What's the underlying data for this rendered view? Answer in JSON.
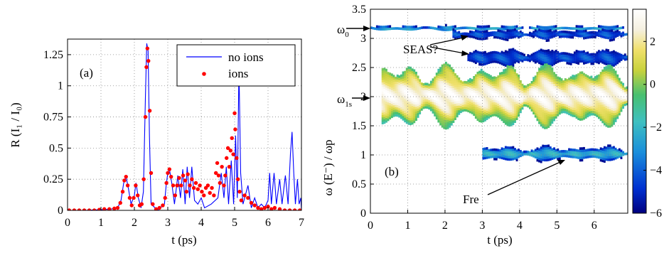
{
  "chart_data": [
    {
      "panel": "(a)",
      "type": "line",
      "xlabel": "t  (ps)",
      "ylabel": "R  (I₁ / I₀)",
      "xlim": [
        0,
        7
      ],
      "ylim": [
        0,
        1.375
      ],
      "xticks": [
        "0",
        "1",
        "2",
        "3",
        "4",
        "5",
        "6",
        "7"
      ],
      "yticks": [
        "0",
        "0.25",
        "0.5",
        "0.75",
        "1",
        "1.25"
      ],
      "grid": "dotted",
      "legend_position": "top-right",
      "series": [
        {
          "name": "no ions",
          "style": "line",
          "color": "#0000ff",
          "points": [
            [
              0,
              0
            ],
            [
              0.5,
              0
            ],
            [
              1.0,
              0.005
            ],
            [
              1.3,
              0.01
            ],
            [
              1.5,
              0.02
            ],
            [
              1.6,
              0.08
            ],
            [
              1.68,
              0.22
            ],
            [
              1.75,
              0.27
            ],
            [
              1.82,
              0.18
            ],
            [
              1.9,
              0.05
            ],
            [
              2.0,
              0.12
            ],
            [
              2.05,
              0.22
            ],
            [
              2.12,
              0.1
            ],
            [
              2.2,
              0.02
            ],
            [
              2.27,
              0.15
            ],
            [
              2.33,
              0.9
            ],
            [
              2.37,
              1.34
            ],
            [
              2.41,
              1.28
            ],
            [
              2.45,
              0.6
            ],
            [
              2.5,
              0.05
            ],
            [
              2.7,
              0.0
            ],
            [
              2.9,
              0.05
            ],
            [
              2.95,
              0.2
            ],
            [
              3.0,
              0.3
            ],
            [
              3.05,
              0.33
            ],
            [
              3.12,
              0.22
            ],
            [
              3.2,
              0.05
            ],
            [
              3.3,
              0.28
            ],
            [
              3.38,
              0.1
            ],
            [
              3.45,
              0.33
            ],
            [
              3.52,
              0.05
            ],
            [
              3.58,
              0.35
            ],
            [
              3.65,
              0.1
            ],
            [
              3.72,
              0.35
            ],
            [
              3.8,
              0.08
            ],
            [
              3.9,
              0.05
            ],
            [
              4.0,
              0.1
            ],
            [
              4.1,
              0.02
            ],
            [
              4.3,
              0.05
            ],
            [
              4.5,
              0.1
            ],
            [
              4.6,
              0.3
            ],
            [
              4.68,
              0.1
            ],
            [
              4.75,
              0.35
            ],
            [
              4.82,
              0.05
            ],
            [
              4.9,
              0.4
            ],
            [
              4.97,
              0.05
            ],
            [
              5.03,
              0.6
            ],
            [
              5.08,
              0.1
            ],
            [
              5.13,
              1.15
            ],
            [
              5.18,
              0.3
            ],
            [
              5.25,
              0.05
            ],
            [
              5.4,
              0.2
            ],
            [
              5.5,
              0.02
            ],
            [
              5.6,
              0.1
            ],
            [
              5.7,
              0.02
            ],
            [
              5.8,
              0.05
            ],
            [
              5.9,
              0.02
            ],
            [
              6.0,
              0.08
            ],
            [
              6.05,
              0.3
            ],
            [
              6.1,
              0.05
            ],
            [
              6.18,
              0.3
            ],
            [
              6.25,
              0.05
            ],
            [
              6.35,
              0.25
            ],
            [
              6.42,
              0.05
            ],
            [
              6.52,
              0.28
            ],
            [
              6.6,
              0.05
            ],
            [
              6.67,
              0.45
            ],
            [
              6.72,
              0.63
            ],
            [
              6.77,
              0.3
            ],
            [
              6.82,
              0.05
            ],
            [
              6.88,
              0.25
            ],
            [
              6.93,
              0.05
            ],
            [
              6.98,
              0.1
            ],
            [
              7.0,
              0.0
            ]
          ]
        },
        {
          "name": "ions",
          "style": "markers",
          "color": "#ff0000",
          "points": [
            [
              0.05,
              0
            ],
            [
              0.2,
              0
            ],
            [
              0.35,
              0
            ],
            [
              0.5,
              0
            ],
            [
              0.65,
              0
            ],
            [
              0.8,
              0
            ],
            [
              0.95,
              0.005
            ],
            [
              1.1,
              0.01
            ],
            [
              1.25,
              0.01
            ],
            [
              1.4,
              0.015
            ],
            [
              1.5,
              0.02
            ],
            [
              1.58,
              0.06
            ],
            [
              1.65,
              0.15
            ],
            [
              1.7,
              0.24
            ],
            [
              1.75,
              0.27
            ],
            [
              1.8,
              0.2
            ],
            [
              1.86,
              0.1
            ],
            [
              1.92,
              0.04
            ],
            [
              1.98,
              0.1
            ],
            [
              2.04,
              0.2
            ],
            [
              2.1,
              0.12
            ],
            [
              2.16,
              0.04
            ],
            [
              2.22,
              0.05
            ],
            [
              2.28,
              0.25
            ],
            [
              2.33,
              0.75
            ],
            [
              2.36,
              1.15
            ],
            [
              2.39,
              1.3
            ],
            [
              2.42,
              1.2
            ],
            [
              2.46,
              0.8
            ],
            [
              2.5,
              0.3
            ],
            [
              2.55,
              0.05
            ],
            [
              2.65,
              0.01
            ],
            [
              2.75,
              0.02
            ],
            [
              2.85,
              0.04
            ],
            [
              2.92,
              0.1
            ],
            [
              2.96,
              0.22
            ],
            [
              3.0,
              0.3
            ],
            [
              3.05,
              0.33
            ],
            [
              3.1,
              0.27
            ],
            [
              3.16,
              0.2
            ],
            [
              3.22,
              0.12
            ],
            [
              3.28,
              0.2
            ],
            [
              3.34,
              0.26
            ],
            [
              3.4,
              0.2
            ],
            [
              3.46,
              0.28
            ],
            [
              3.52,
              0.24
            ],
            [
              3.56,
              0.15
            ],
            [
              3.6,
              0.29
            ],
            [
              3.66,
              0.2
            ],
            [
              3.72,
              0.25
            ],
            [
              3.78,
              0.18
            ],
            [
              3.84,
              0.22
            ],
            [
              3.9,
              0.17
            ],
            [
              3.96,
              0.2
            ],
            [
              4.02,
              0.15
            ],
            [
              4.08,
              0.12
            ],
            [
              4.14,
              0.18
            ],
            [
              4.2,
              0.2
            ],
            [
              4.26,
              0.14
            ],
            [
              4.32,
              0.18
            ],
            [
              4.38,
              0.12
            ],
            [
              4.44,
              0.3
            ],
            [
              4.48,
              0.38
            ],
            [
              4.52,
              0.28
            ],
            [
              4.56,
              0.22
            ],
            [
              4.62,
              0.35
            ],
            [
              4.68,
              0.2
            ],
            [
              4.72,
              0.28
            ],
            [
              4.76,
              0.42
            ],
            [
              4.8,
              0.5
            ],
            [
              4.84,
              0.35
            ],
            [
              4.88,
              0.48
            ],
            [
              4.92,
              0.58
            ],
            [
              4.96,
              0.45
            ],
            [
              5.0,
              0.78
            ],
            [
              5.02,
              0.65
            ],
            [
              5.06,
              0.42
            ],
            [
              5.1,
              0.25
            ],
            [
              5.15,
              0.15
            ],
            [
              5.2,
              0.08
            ],
            [
              5.3,
              0.12
            ],
            [
              5.4,
              0.1
            ],
            [
              5.5,
              0.06
            ],
            [
              5.6,
              0.04
            ],
            [
              5.7,
              0.02
            ],
            [
              5.8,
              0.01
            ],
            [
              5.9,
              0.02
            ],
            [
              6.0,
              0.03
            ],
            [
              6.1,
              0.01
            ],
            [
              6.2,
              0.02
            ],
            [
              6.35,
              0.01
            ],
            [
              6.5,
              0.0
            ],
            [
              6.65,
              0.0
            ],
            [
              6.8,
              0.0
            ],
            [
              6.95,
              0.0
            ]
          ]
        }
      ]
    },
    {
      "panel": "(b)",
      "type": "heatmap",
      "xlabel": "t  (ps)",
      "ylabel": "ω (E⁻) / ωp",
      "xlim": [
        0,
        6.9
      ],
      "ylim": [
        0,
        3.5
      ],
      "xticks": [
        "0",
        "1",
        "2",
        "3",
        "4",
        "5",
        "6"
      ],
      "yticks": [
        "0",
        "0.5",
        "1",
        "1.5",
        "2",
        "2.5",
        "3",
        "3.5"
      ],
      "colorbar": {
        "min": -6,
        "max": 3.5,
        "ticks": [
          "2",
          "0",
          "−2",
          "−4",
          "−6"
        ],
        "tick_values": [
          2,
          0,
          -2,
          -4,
          -6
        ]
      },
      "bands": [
        {
          "t_start": 0.0,
          "t_end": 6.9,
          "center": 3.15,
          "halfwidth": 0.05,
          "peak": -3
        },
        {
          "t_start": 2.2,
          "t_end": 6.9,
          "center": 3.05,
          "halfwidth": 0.12,
          "peak": -4.5
        },
        {
          "t_start": 2.6,
          "t_end": 6.9,
          "center": 2.65,
          "halfwidth": 0.2,
          "peak": -4.5
        },
        {
          "t_start": 0.3,
          "t_end": 6.9,
          "center": 2.0,
          "halfwidth": 0.45,
          "peak": 3
        },
        {
          "t_start": 3.0,
          "t_end": 6.9,
          "center": 1.0,
          "halfwidth": 0.12,
          "peak": -2.5
        }
      ],
      "annotations": {
        "panel_label": "(b)",
        "omega0": {
          "base": "ω",
          "sub": "0",
          "y": 3.15
        },
        "omega1s": {
          "base": "ω",
          "sub": "1s",
          "y": 2.0
        },
        "seas": {
          "text": "SEAS?",
          "targets": [
            [
              2.5,
              3.05
            ],
            [
              2.6,
              2.65
            ]
          ]
        },
        "fre": {
          "text": "Fre",
          "target": [
            5.4,
            0.95
          ]
        }
      }
    }
  ]
}
